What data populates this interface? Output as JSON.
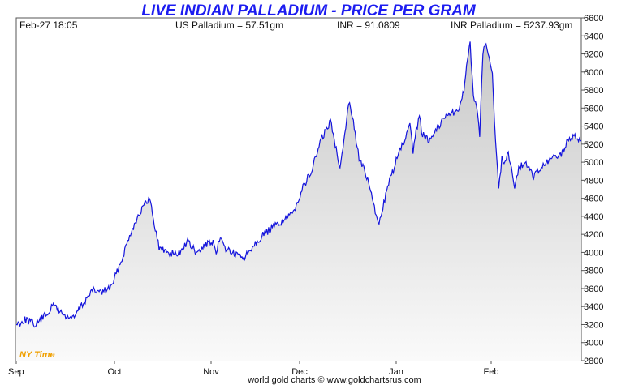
{
  "chart_data": {
    "type": "area",
    "title": "LIVE INDIAN PALLADIUM - PRICE PER GRAM",
    "header": {
      "datetime": "Feb-27  18:05",
      "us_price": "US Palladium = 57.51gm",
      "fx_rate": "INR = 91.0809",
      "inr_price": "INR Palladium = 5237.93gm"
    },
    "timezone_label": "NY Time",
    "footer": "world gold charts © www.goldchartsrus.com",
    "xlabels": [
      "Sep",
      "Oct",
      "Nov",
      "Dec",
      "Jan",
      "Feb"
    ],
    "ylim": [
      2800,
      6600
    ],
    "yticks": [
      "2800",
      "3000",
      "3200",
      "3400",
      "3600",
      "3800",
      "4000",
      "4200",
      "4400",
      "4600",
      "4800",
      "5000",
      "5200",
      "5400",
      "5600",
      "5800",
      "6000",
      "6200",
      "6400",
      "6600"
    ],
    "grid": false,
    "colors": {
      "line": "#1414dc",
      "fill": "#dcdcdc",
      "title": "#1c1cf0",
      "timezone": "#f0a000"
    },
    "xdomain": [
      0,
      178
    ],
    "series": [
      {
        "x": [
          0,
          3,
          6,
          9,
          12,
          15,
          18,
          20,
          22,
          24,
          27,
          30,
          33,
          36,
          39,
          42,
          45,
          48,
          51,
          54,
          57,
          60,
          62,
          63,
          64,
          66,
          69,
          72,
          75,
          78,
          81,
          84,
          87,
          90,
          93,
          96,
          99,
          102,
          105,
          108,
          111,
          114,
          117,
          120,
          123,
          124,
          125,
          126,
          127,
          128,
          130,
          133,
          136,
          139,
          141,
          143,
          144,
          145,
          146,
          147,
          148,
          149,
          150,
          151,
          152,
          153,
          154,
          155,
          156,
          157,
          158,
          160,
          163,
          166,
          169,
          172,
          174,
          176,
          178
        ],
        "values": [
          3200,
          3260,
          3200,
          3300,
          3420,
          3300,
          3270,
          3380,
          3480,
          3580,
          3560,
          3620,
          3900,
          4220,
          4450,
          4600,
          4050,
          4000,
          3980,
          4120,
          3980,
          4100,
          4100,
          3950,
          4160,
          4050,
          3970,
          3950,
          4100,
          4200,
          4280,
          4350,
          4420,
          4700,
          4900,
          5250,
          5450,
          4950,
          5700,
          5050,
          4780,
          4300,
          4720,
          5050,
          5300,
          5400,
          5100,
          5350,
          5500,
          5300,
          5250,
          5400,
          5550,
          5550,
          5800,
          6350,
          5700,
          5600,
          5300,
          6200,
          6350,
          6150,
          6000,
          5200,
          4700,
          5050,
          5000,
          5100,
          4950,
          4700,
          4900,
          5000,
          4850,
          4950,
          5050,
          5100,
          5250,
          5300,
          5237.93
        ]
      }
    ]
  }
}
